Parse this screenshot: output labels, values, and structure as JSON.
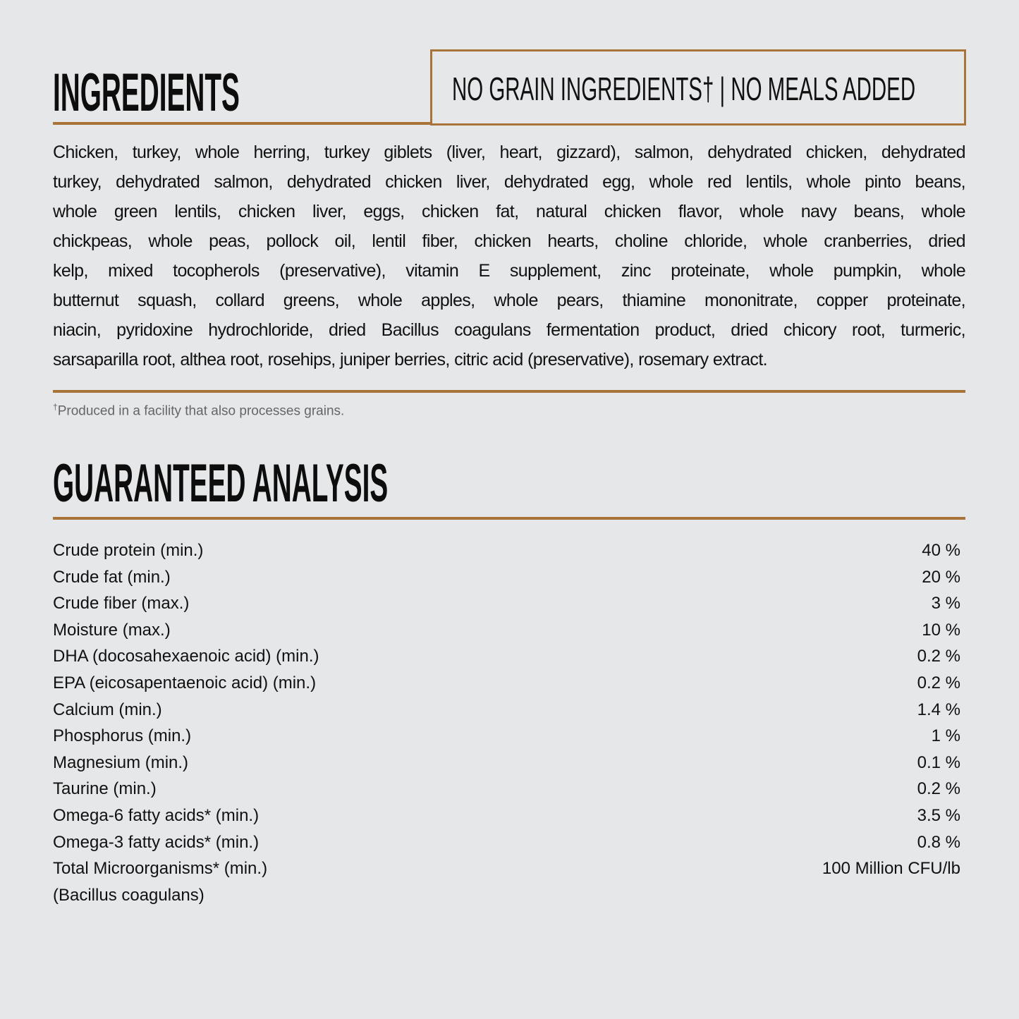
{
  "colors": {
    "background": "#e6e7e9",
    "accent": "#a8743a",
    "text": "#111111"
  },
  "ingredients": {
    "title": "INGREDIENTS",
    "badge": "NO GRAIN INGREDIENTS† | NO MEALS ADDED",
    "lines": [
      "Chicken, turkey, whole herring, turkey giblets (liver, heart, gizzard), salmon, dehydrated chicken, dehydrated",
      "turkey, dehydrated salmon, dehydrated chicken liver, dehydrated egg, whole red lentils, whole pinto beans,",
      "whole green lentils, chicken liver, eggs, chicken fat, natural chicken flavor, whole navy beans, whole",
      "chickpeas, whole peas, pollock oil, lentil fiber, chicken hearts, choline chloride, whole cranberries, dried",
      "kelp, mixed tocopherols (preservative), vitamin E supplement, zinc proteinate, whole pumpkin, whole",
      "butternut squash, collard greens, whole apples, whole pears, thiamine mononitrate, copper proteinate,",
      "niacin, pyridoxine hydrochloride, dried Bacillus coagulans fermentation product, dried chicory root, turmeric,",
      "sarsaparilla root, althea root, rosehips, juniper berries, citric acid (preservative), rosemary extract."
    ],
    "footnote_mark": "†",
    "footnote": "Produced in a facility that also processes grains."
  },
  "analysis": {
    "title": "GUARANTEED ANALYSIS",
    "rows": [
      {
        "label": "Crude protein (min.)",
        "value": "40 %"
      },
      {
        "label": "Crude fat (min.)",
        "value": "20 %"
      },
      {
        "label": "Crude fiber (max.)",
        "value": "3 %"
      },
      {
        "label": "Moisture (max.)",
        "value": "10 %"
      },
      {
        "label": "DHA (docosahexaenoic acid) (min.)",
        "value": "0.2 %"
      },
      {
        "label": "EPA (eicosapentaenoic acid) (min.)",
        "value": "0.2 %"
      },
      {
        "label": "Calcium (min.)",
        "value": "1.4 %"
      },
      {
        "label": "Phosphorus (min.)",
        "value": "1 %"
      },
      {
        "label": "Magnesium (min.)",
        "value": "0.1 %"
      },
      {
        "label": "Taurine (min.)",
        "value": "0.2 %"
      },
      {
        "label": "Omega-6 fatty acids* (min.)",
        "value": "3.5 %"
      },
      {
        "label": "Omega-3 fatty acids* (min.)",
        "value": "0.8 %"
      },
      {
        "label": "Total Microorganisms* (min.)",
        "value": "100 Million CFU/lb"
      },
      {
        "label": "(Bacillus coagulans)",
        "value": ""
      }
    ]
  }
}
